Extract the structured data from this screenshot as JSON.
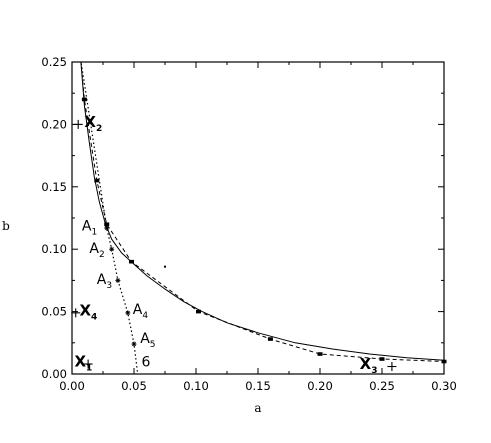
{
  "chart_data": {
    "type": "line",
    "xlabel": "a",
    "ylabel": "b",
    "xlim": [
      0,
      0.3
    ],
    "ylim": [
      0,
      0.25
    ],
    "x_ticks": [
      0.0,
      0.05,
      0.1,
      0.15,
      0.2,
      0.25,
      0.3
    ],
    "x_tick_labels": [
      "0.00",
      "0.05",
      "0.10",
      "0.15",
      "0.20",
      "0.25",
      "0.30"
    ],
    "y_ticks": [
      0.0,
      0.05,
      0.1,
      0.15,
      0.2,
      0.25
    ],
    "y_tick_labels": [
      "0.00",
      "0.05",
      "0.10",
      "0.15",
      "0.20",
      "0.25"
    ],
    "series": [
      {
        "style": "solid",
        "x": [
          0.007,
          0.01,
          0.014,
          0.018,
          0.022,
          0.027,
          0.032,
          0.04,
          0.05,
          0.06,
          0.075,
          0.09,
          0.105,
          0.125,
          0.15,
          0.18,
          0.21,
          0.24,
          0.27,
          0.3
        ],
        "y": [
          0.252,
          0.215,
          0.185,
          0.158,
          0.138,
          0.12,
          0.108,
          0.097,
          0.088,
          0.079,
          0.068,
          0.058,
          0.05,
          0.041,
          0.033,
          0.025,
          0.02,
          0.016,
          0.013,
          0.011
        ]
      },
      {
        "style": "dashed",
        "x": [
          0.007,
          0.01,
          0.02,
          0.028,
          0.048,
          0.102,
          0.16,
          0.2,
          0.25,
          0.3
        ],
        "y": [
          0.252,
          0.22,
          0.155,
          0.12,
          0.09,
          0.05,
          0.028,
          0.016,
          0.012,
          0.01
        ]
      },
      {
        "style": "dotted",
        "x": [
          0.007,
          0.028,
          0.032,
          0.037,
          0.045,
          0.05,
          0.053
        ],
        "y": [
          0.252,
          0.117,
          0.1,
          0.075,
          0.049,
          0.024,
          0.0
        ]
      }
    ],
    "square_markers": {
      "x": [
        0.01,
        0.02,
        0.028,
        0.048,
        0.102,
        0.16,
        0.2,
        0.25,
        0.3
      ],
      "y": [
        0.22,
        0.155,
        0.12,
        0.09,
        0.05,
        0.028,
        0.016,
        0.012,
        0.01
      ]
    },
    "star_markers": {
      "x": [
        0.028,
        0.032,
        0.037,
        0.045,
        0.05
      ],
      "y": [
        0.117,
        0.1,
        0.075,
        0.049,
        0.024
      ]
    },
    "stray_point": {
      "x": 0.075,
      "y": 0.086
    },
    "cross_markers": {
      "x": [
        0.005,
        0.013,
        0.003,
        0.258
      ],
      "y": [
        0.2,
        0.008,
        0.049,
        0.006
      ]
    },
    "annotations": [
      {
        "id": "X2",
        "main": "X",
        "sub": "2",
        "bold": true,
        "x": 0.01,
        "y": 0.198
      },
      {
        "id": "X1",
        "main": "X",
        "sub": "1",
        "bold": true,
        "x": 0.002,
        "y": 0.006
      },
      {
        "id": "X4",
        "main": "X",
        "sub": "4",
        "bold": true,
        "x": 0.006,
        "y": 0.047
      },
      {
        "id": "X3",
        "main": "X",
        "sub": "3",
        "bold": true,
        "x": 0.232,
        "y": 0.004
      },
      {
        "id": "A1",
        "main": "A",
        "sub": "1",
        "bold": false,
        "x": 0.008,
        "y": 0.115
      },
      {
        "id": "A2",
        "main": "A",
        "sub": "2",
        "bold": false,
        "x": 0.014,
        "y": 0.097
      },
      {
        "id": "A3",
        "main": "A",
        "sub": "3",
        "bold": false,
        "x": 0.02,
        "y": 0.072
      },
      {
        "id": "A4",
        "main": "A",
        "sub": "4",
        "bold": false,
        "x": 0.049,
        "y": 0.048
      },
      {
        "id": "A5",
        "main": "A",
        "sub": "5",
        "bold": false,
        "x": 0.055,
        "y": 0.025
      },
      {
        "id": "six",
        "main": "6",
        "sub": "",
        "bold": false,
        "x": 0.056,
        "y": 0.006
      }
    ]
  }
}
